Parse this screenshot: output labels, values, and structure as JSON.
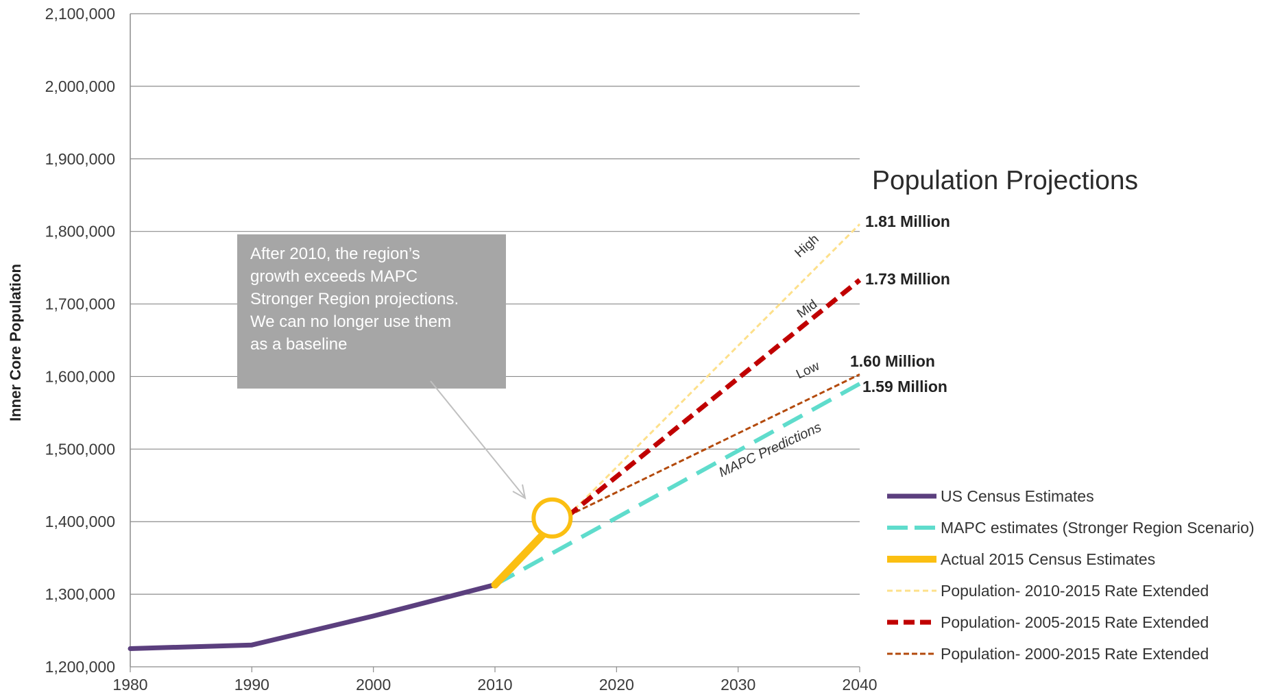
{
  "chart_data": {
    "type": "line",
    "title": "Population Projections",
    "xlabel": "",
    "ylabel": "Inner Core Population",
    "xlim": [
      1980,
      2040
    ],
    "ylim": [
      1200000,
      2100000
    ],
    "x_ticks": [
      "1980",
      "1990",
      "2000",
      "2010",
      "2020",
      "2030",
      "2040"
    ],
    "y_ticks": [
      "1,200,000",
      "1,300,000",
      "1,400,000",
      "1,500,000",
      "1,600,000",
      "1,700,000",
      "1,800,000",
      "1,900,000",
      "2,000,000",
      "2,100,000"
    ],
    "grid": "horizontal",
    "legend_position": "right",
    "series": [
      {
        "name": "US Census Estimates",
        "color": "#5b3f7e",
        "style": "solid-thick",
        "points": [
          [
            1980,
            1225000
          ],
          [
            1990,
            1230000
          ],
          [
            2000,
            1270000
          ],
          [
            2010,
            1313000
          ]
        ]
      },
      {
        "name": "MAPC estimates (Stronger Region Scenario)",
        "color": "#5fdccc",
        "style": "long-dash",
        "points": [
          [
            2010,
            1313000
          ],
          [
            2040,
            1590000
          ]
        ]
      },
      {
        "name": "Actual 2015 Census Estimates",
        "color": "#fbbf12",
        "style": "solid-thicker",
        "points": [
          [
            2010,
            1313000
          ],
          [
            2014.5,
            1392000
          ]
        ]
      },
      {
        "name": "Population- 2010-2015 Rate Extended",
        "color": "#fde08a",
        "style": "dashed-thin",
        "points": [
          [
            2016,
            1408000
          ],
          [
            2040,
            1810000
          ]
        ]
      },
      {
        "name": "Population- 2005-2015 Rate Extended",
        "color": "#c00000",
        "style": "dashed-thick",
        "points": [
          [
            2016,
            1408000
          ],
          [
            2040,
            1733000
          ]
        ]
      },
      {
        "name": "Population- 2000-2015 Rate Extended",
        "color": "#b34a0c",
        "style": "dashed-small",
        "points": [
          [
            2016,
            1408000
          ],
          [
            2040,
            1603000
          ]
        ]
      }
    ],
    "highlight_marker": {
      "x": 2014.7,
      "y": 1405000,
      "color": "#fbbf12"
    },
    "end_labels": [
      {
        "text": "1.81 Million",
        "value": 1810000
      },
      {
        "text": "1.73 Million",
        "value": 1733000
      },
      {
        "text": "1.60 Million",
        "value": 1603000
      },
      {
        "text": "1.59 Million",
        "value": 1590000
      }
    ],
    "line_tags": [
      {
        "text": "High",
        "x": 2037,
        "y": 1770000
      },
      {
        "text": "Mid",
        "x": 2037,
        "y": 1683000
      },
      {
        "text": "Low",
        "x": 2037,
        "y": 1598000
      }
    ],
    "mapc_tag": {
      "text": "MAPC Predictions",
      "x": 2033,
      "y": 1520000
    },
    "callout": {
      "lines": [
        "After 2010, the region’s",
        "growth exceeds MAPC",
        "Stronger Region projections.",
        "We can no longer use them",
        "as a baseline"
      ],
      "color": "#a6a6a6"
    }
  }
}
